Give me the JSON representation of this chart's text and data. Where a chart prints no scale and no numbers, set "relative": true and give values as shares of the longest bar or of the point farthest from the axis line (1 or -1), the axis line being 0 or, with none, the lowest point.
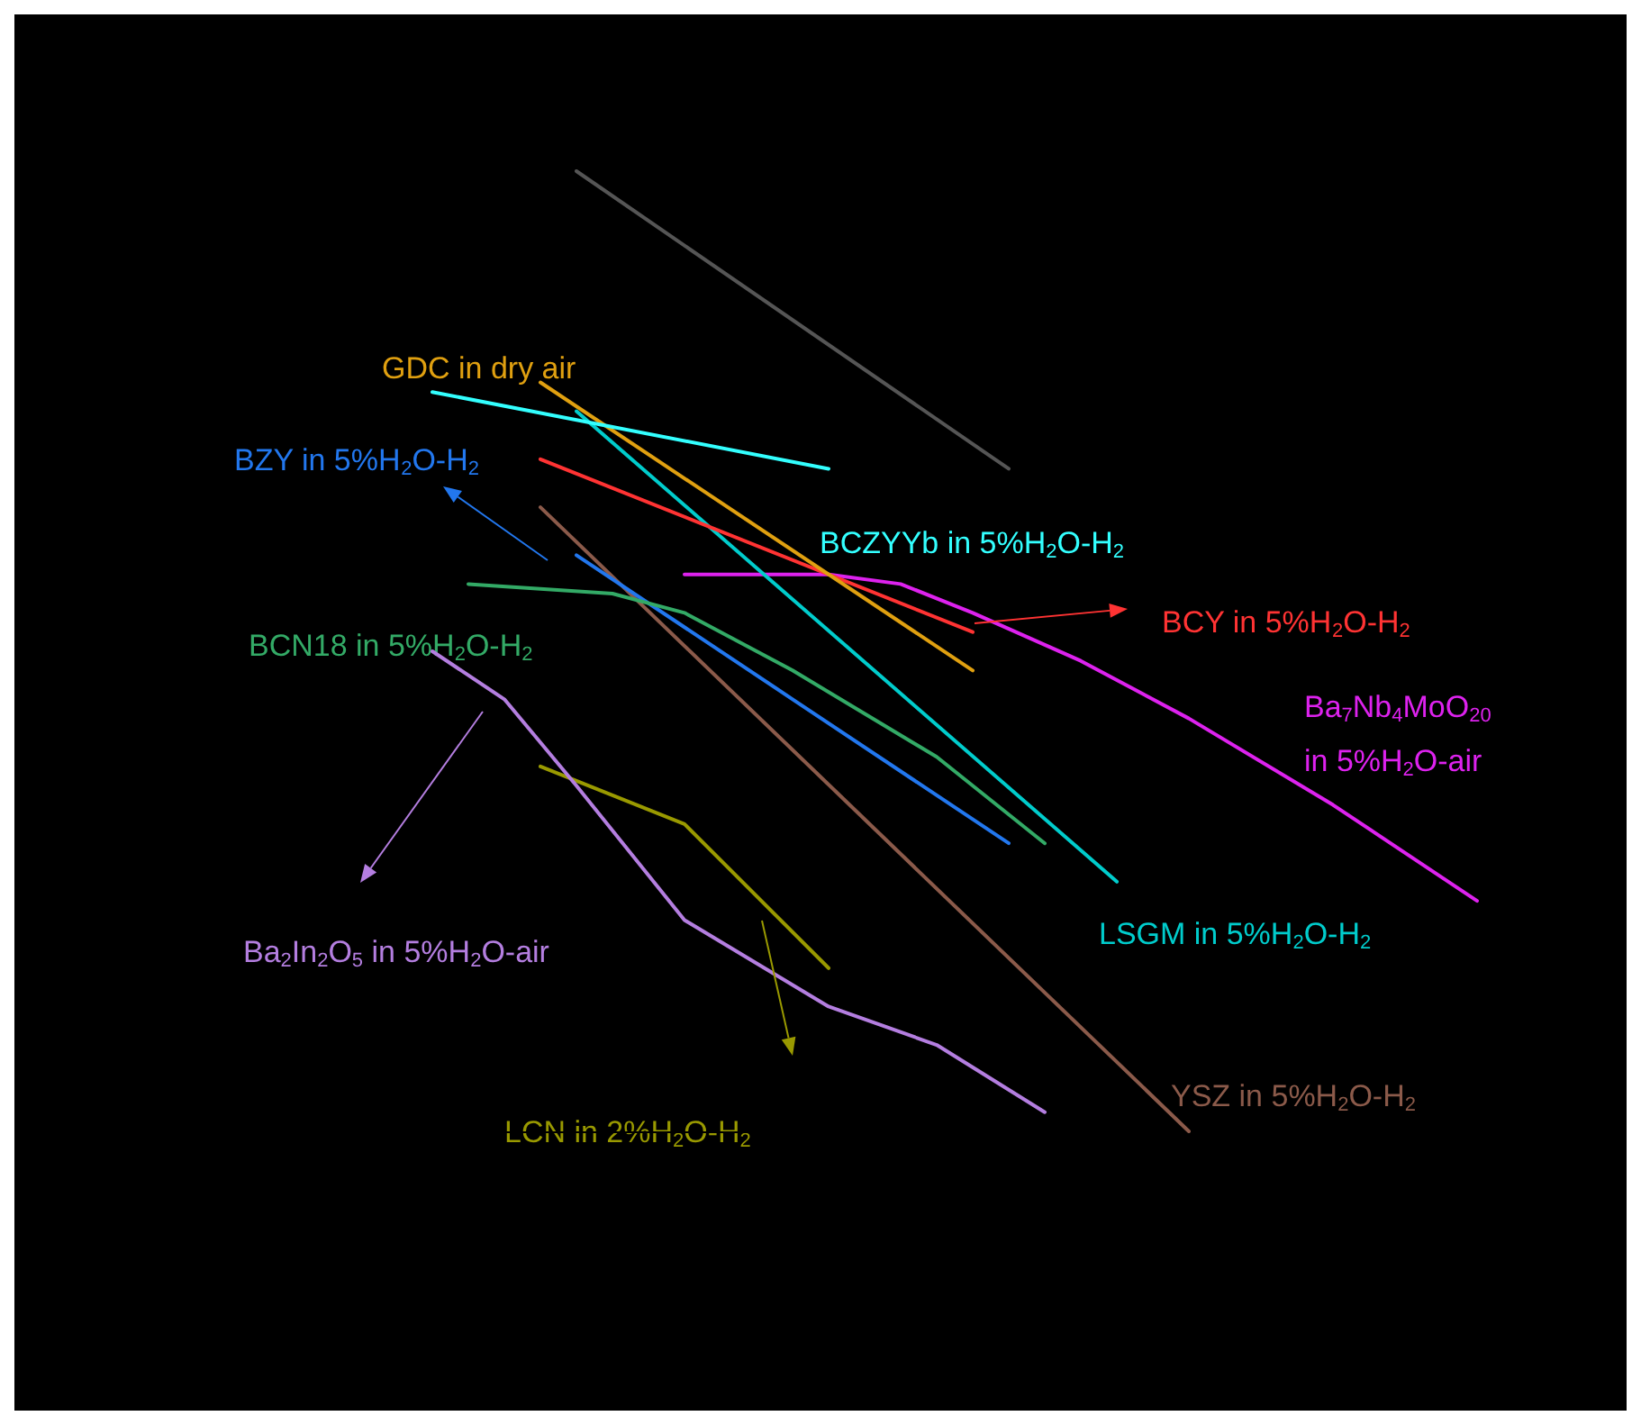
{
  "chart_data": {
    "type": "line",
    "relative": true,
    "categories": [
      null,
      null,
      null,
      null,
      null,
      null,
      null,
      null,
      null,
      null,
      null,
      null,
      null,
      null,
      null,
      null,
      null,
      null,
      null,
      null,
      null,
      null,
      null,
      null,
      null,
      null,
      null,
      null,
      null,
      null
    ],
    "series": [
      {
        "color": "#555555",
        "values": [
          null,
          null,
          null,
          null,
          1.0,
          null,
          null,
          null,
          null,
          null,
          null,
          null,
          null,
          null,
          null,
          null,
          0.69,
          null,
          null,
          null,
          null,
          null,
          null,
          null,
          null,
          null,
          null,
          null,
          null,
          null
        ]
      },
      {
        "name": "BCZYYb in 5%H$_{2}$O-H$_{2}$",
        "color": "#33ffff",
        "values": [
          0.77,
          null,
          null,
          null,
          null,
          null,
          null,
          null,
          null,
          null,
          null,
          0.69,
          null,
          null,
          null,
          null,
          null,
          null,
          null,
          null,
          null,
          null,
          null,
          null,
          null,
          null,
          null,
          null,
          null,
          null
        ]
      },
      {
        "name": "GDC in dry air",
        "color": "#e0a010",
        "values": [
          null,
          null,
          null,
          0.78,
          null,
          null,
          null,
          null,
          null,
          null,
          null,
          null,
          null,
          null,
          null,
          0.48,
          null,
          null,
          null,
          null,
          null,
          null,
          null,
          null,
          null,
          null,
          null,
          null,
          null,
          null
        ]
      },
      {
        "name": "BCY in 5%H$_{2}$O-H$_{2}$",
        "color": "#ff3333",
        "values": [
          null,
          null,
          null,
          0.7,
          null,
          null,
          null,
          null,
          null,
          null,
          null,
          null,
          null,
          null,
          null,
          0.52,
          null,
          null,
          null,
          null,
          null,
          null,
          null,
          null,
          null,
          null,
          null,
          null,
          null,
          null
        ]
      },
      {
        "name": "LSGM in 5%H$_{2}$O-H$_{2}$",
        "color": "#00cccc",
        "values": [
          null,
          null,
          null,
          null,
          0.75,
          null,
          null,
          null,
          null,
          null,
          null,
          null,
          null,
          null,
          null,
          null,
          null,
          null,
          null,
          0.26,
          null,
          null,
          null,
          null,
          null,
          null,
          null,
          null,
          null,
          null
        ]
      },
      {
        "name": "Ba$_{7}$Nb$_{4}$MoO$_{20}$\nin 5%H$_{2}$O-air",
        "color": "#dd22ee",
        "values": [
          null,
          null,
          null,
          null,
          null,
          null,
          null,
          0.58,
          null,
          null,
          null,
          0.58,
          null,
          0.57,
          null,
          0.54,
          null,
          null,
          0.49,
          null,
          null,
          0.43,
          null,
          null,
          null,
          0.34,
          null,
          null,
          null,
          0.24
        ]
      },
      {
        "name": "BCN18 in 5%H$_{2}$O-H$_{2}$",
        "color": "#33aa66",
        "values": [
          null,
          0.57,
          null,
          null,
          null,
          0.56,
          null,
          0.54,
          null,
          null,
          0.48,
          null,
          null,
          null,
          0.39,
          null,
          null,
          0.3,
          null,
          null,
          null,
          null,
          null,
          null,
          null,
          null,
          null,
          null,
          null,
          null
        ]
      },
      {
        "name": "BZY in 5%H$_{2}$O-H$_{2}$",
        "color": "#2277ee",
        "values": [
          null,
          null,
          null,
          null,
          0.6,
          null,
          null,
          null,
          null,
          null,
          0.45,
          null,
          null,
          null,
          null,
          null,
          0.3,
          null,
          null,
          null,
          null,
          null,
          null,
          null,
          null,
          null,
          null,
          null,
          null,
          null
        ]
      },
      {
        "name": "YSZ in 5%H$_{2}$O-H$_{2}$",
        "color": "#8b5a4a",
        "values": [
          null,
          null,
          null,
          0.65,
          null,
          null,
          null,
          null,
          null,
          null,
          null,
          null,
          null,
          null,
          null,
          null,
          null,
          null,
          null,
          null,
          null,
          0.0,
          null,
          null,
          null,
          null,
          null,
          null,
          null,
          null
        ]
      },
      {
        "name": "Ba$_{2}$In$_{2}$O$_{5}$ in 5%H$_{2}$O-air",
        "color": "#b47ee0",
        "values": [
          0.5,
          null,
          0.45,
          null,
          0.36,
          null,
          null,
          0.22,
          null,
          null,
          null,
          0.13,
          null,
          null,
          0.09,
          null,
          null,
          0.02,
          null,
          null,
          null,
          null,
          null,
          null,
          null,
          null,
          null,
          null,
          null,
          null
        ]
      },
      {
        "name": "LCN in 2%H$_{2}$O-H$_{2}$",
        "color": "#999900",
        "values": [
          null,
          null,
          null,
          0.38,
          null,
          null,
          null,
          0.32,
          null,
          null,
          null,
          0.17,
          null,
          null,
          null,
          null,
          null,
          null,
          null,
          null,
          null,
          null,
          null,
          null,
          null,
          null,
          null,
          null,
          null,
          null
        ]
      }
    ]
  }
}
